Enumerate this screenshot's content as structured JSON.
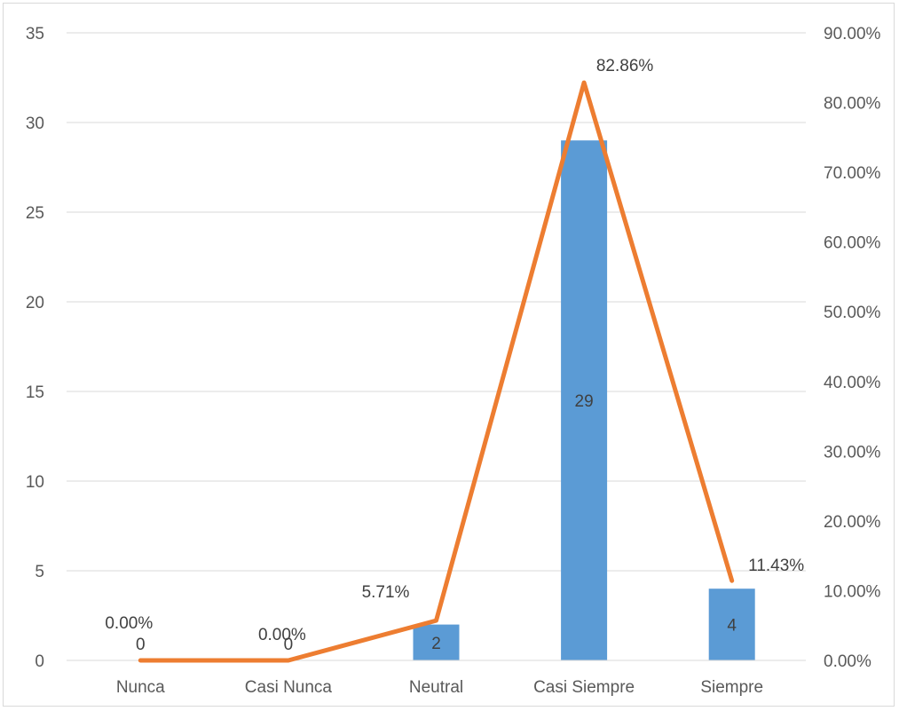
{
  "chart_data": {
    "type": "bar",
    "categories": [
      "Nunca",
      "Casi Nunca",
      "Neutral",
      "Casi Siempre",
      "Siempre"
    ],
    "series": [
      {
        "type": "bar",
        "axis": "left",
        "values": [
          0,
          0,
          2,
          29,
          4
        ],
        "data_labels": [
          "0",
          "0",
          "2",
          "29",
          "4"
        ],
        "color": "#5b9bd5"
      },
      {
        "type": "line",
        "axis": "right",
        "values": [
          0.0,
          0.0,
          5.71,
          82.86,
          11.43
        ],
        "data_labels": [
          "0.00%",
          "0.00%",
          "5.71%",
          "82.86%",
          "11.43%"
        ],
        "color": "#ed7d31"
      }
    ],
    "y_left": {
      "range": [
        0,
        35
      ],
      "ticks": [
        "0",
        "5",
        "10",
        "15",
        "20",
        "25",
        "30",
        "35"
      ]
    },
    "y_right": {
      "range": [
        0,
        90
      ],
      "ticks": [
        "0.00%",
        "10.00%",
        "20.00%",
        "30.00%",
        "40.00%",
        "50.00%",
        "60.00%",
        "70.00%",
        "80.00%",
        "90.00%"
      ]
    },
    "grid": true,
    "legend": "none",
    "title": "",
    "xlabel": "",
    "ylabel": ""
  }
}
